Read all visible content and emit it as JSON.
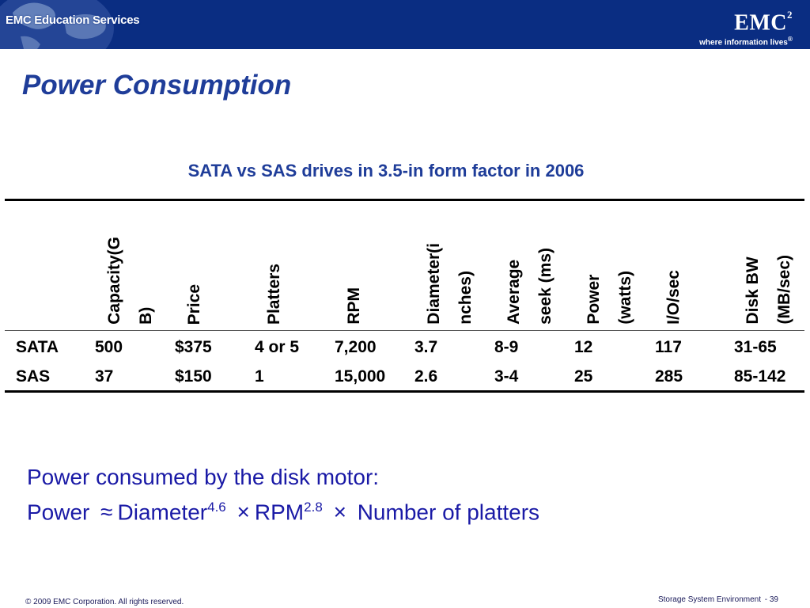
{
  "header": {
    "left_brand": "EMC Education Services",
    "logo_word": "EMC",
    "logo_superscript": "2",
    "logo_tagline": "where information lives",
    "logo_trademark": "®",
    "colors": {
      "band": "#0a2d82",
      "title": "#1f3d99",
      "formula": "#1a1aa6"
    }
  },
  "slide": {
    "title": "Power Consumption",
    "subtitle": "SATA vs SAS drives in 3.5-in form factor in 2006"
  },
  "table": {
    "columns": [
      "",
      "Capacity(G\nB)",
      "Price",
      "Platters",
      "RPM",
      "Diameter(i\nnches)",
      "Average\nseek (ms)",
      "Power\n(watts)",
      "I/O/sec",
      "Disk      BW\n(MB/sec)"
    ],
    "rows": [
      [
        "SATA",
        "500",
        "$375",
        "4 or 5",
        "7,200",
        "3.7",
        "8-9",
        "12",
        "117",
        "31-65"
      ],
      [
        "SAS",
        "37",
        "$150",
        "1",
        "15,000",
        "2.6",
        "3-4",
        "25",
        "285",
        "85-142"
      ]
    ]
  },
  "formula": {
    "line1": "Power consumed by the disk motor:",
    "power": "Power",
    "approx": "≈",
    "diameter": "Diameter",
    "diameter_exp": "4.6",
    "times1": "×",
    "rpm": "RPM",
    "rpm_exp": "2.8",
    "times2": "×",
    "platters": "Number of platters"
  },
  "footer": {
    "copyright": "© 2009 EMC Corporation. All rights reserved.",
    "section": "Storage System Environment",
    "page": "- 39"
  }
}
